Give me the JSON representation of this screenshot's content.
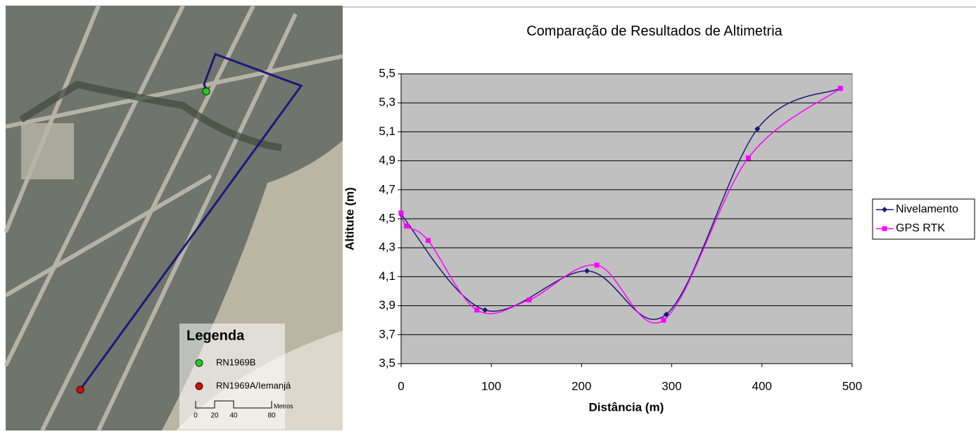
{
  "chart_data": {
    "type": "line",
    "title": "Comparação de Resultados de Altimetria",
    "x_label": "Distância (m)",
    "y_label": "Altitute (m)",
    "xlim": [
      0,
      500
    ],
    "xticks": [
      0,
      100,
      200,
      300,
      400,
      500
    ],
    "ylim": [
      3.5,
      5.5
    ],
    "yticks": [
      {
        "value": 3.5,
        "label": "3,5"
      },
      {
        "value": 3.7,
        "label": "3,7"
      },
      {
        "value": 3.9,
        "label": "3,9"
      },
      {
        "value": 4.1,
        "label": "4,1"
      },
      {
        "value": 4.3,
        "label": "4,3"
      },
      {
        "value": 4.5,
        "label": "4,5"
      },
      {
        "value": 4.7,
        "label": "4,7"
      },
      {
        "value": 4.9,
        "label": "4,9"
      },
      {
        "value": 5.1,
        "label": "5,1"
      },
      {
        "value": 5.3,
        "label": "5,3"
      },
      {
        "value": 5.5,
        "label": "5,5"
      }
    ],
    "grid": true,
    "legend": "right",
    "smooth": true,
    "series": [
      {
        "name": "Nivelamento",
        "color": "#1a1a78",
        "marker": "diamond",
        "x": [
          0,
          93,
          206,
          294,
          395,
          487
        ],
        "values": [
          4.53,
          3.87,
          4.14,
          3.84,
          5.12,
          5.4
        ]
      },
      {
        "name": "GPS RTK",
        "color": "#ff00ff",
        "marker": "square",
        "x": [
          0,
          6,
          30,
          84,
          142,
          217,
          291,
          385,
          487
        ],
        "values": [
          4.54,
          4.45,
          4.35,
          3.87,
          3.94,
          4.18,
          3.8,
          4.92,
          5.4
        ]
      }
    ]
  },
  "map_legend": {
    "title": "Legenda",
    "items": [
      "RN1969B",
      "RN1969A/Iemanjá"
    ],
    "scale": {
      "labels": [
        "0",
        "20",
        "40",
        "80"
      ],
      "unit": "Metros"
    }
  }
}
